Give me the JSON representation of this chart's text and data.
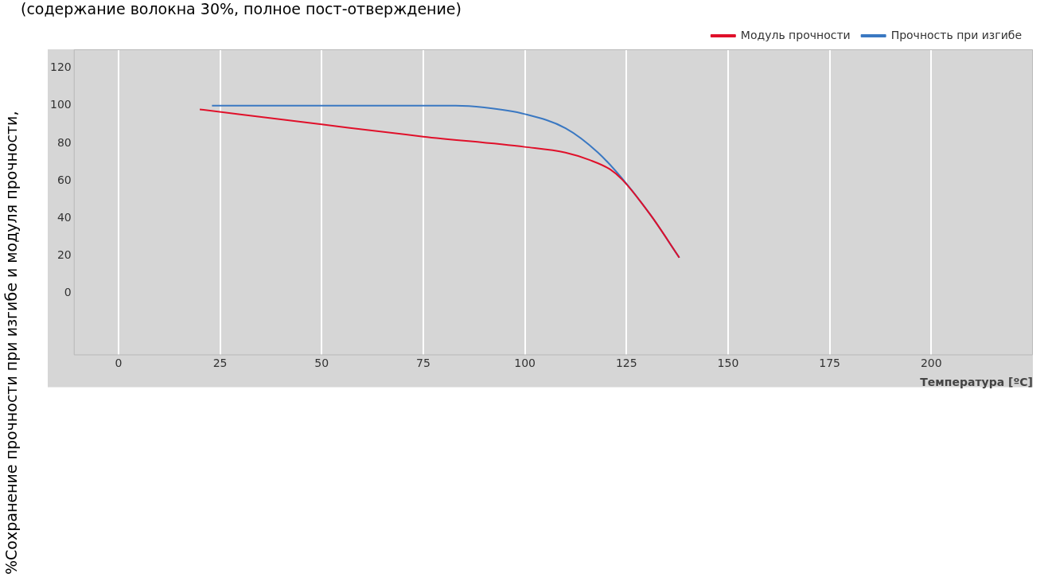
{
  "chart_data": {
    "type": "line",
    "title": "(содержание волокна 30%, полное пост-отверждение)",
    "ylabel": "%Сохранение прочности при изгибе и модуля прочности,",
    "xlabel": "Температура [ºC]",
    "xlim": [
      -11,
      225
    ],
    "xticks": [
      0,
      25,
      50,
      75,
      100,
      125,
      150,
      175,
      200
    ],
    "ylim": [
      -33,
      130
    ],
    "yticks": [
      0,
      20,
      40,
      60,
      80,
      100,
      120
    ],
    "grid": "x",
    "legend": "top right",
    "marker": "none",
    "line_style": "solid",
    "series": [
      {
        "name": "Прочность при изгибе",
        "color": "#3a78c2",
        "x": [
          23,
          50,
          83,
          90,
          100,
          110,
          118,
          124,
          131,
          138
        ],
        "values": [
          100,
          100,
          100,
          99,
          95.5,
          88,
          75,
          61,
          41.5,
          19
        ]
      },
      {
        "name": "Модуль прочности",
        "color": "#e0102a",
        "x": [
          20,
          50,
          75,
          100,
          110,
          116,
          121,
          124,
          131,
          138
        ],
        "values": [
          98,
          90,
          83.5,
          78,
          75,
          71,
          66,
          60.5,
          41.5,
          19
        ]
      }
    ]
  }
}
